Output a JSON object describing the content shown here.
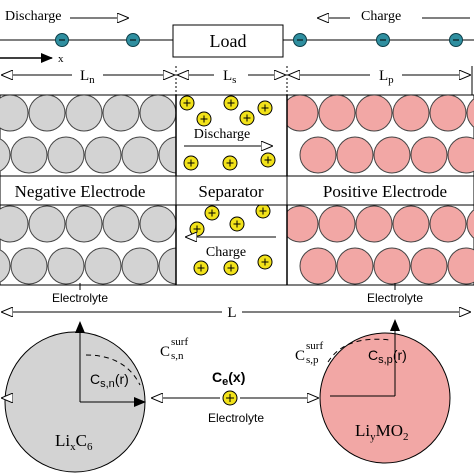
{
  "top": {
    "discharge": "Discharge",
    "charge": "Charge",
    "load": "Load",
    "x_axis": "x"
  },
  "dimensions": {
    "ln": {
      "main": "L",
      "sub": "n"
    },
    "ls": {
      "main": "L",
      "sub": "s"
    },
    "lp": {
      "main": "L",
      "sub": "p"
    },
    "total": "L"
  },
  "cell": {
    "negative": "Negative Electrode",
    "separator": "Separator",
    "positive": "Positive Electrode",
    "sep_discharge": "Discharge",
    "sep_charge": "Charge",
    "electrolyte_left": "Electrolyte",
    "electrolyte_right": "Electrolyte"
  },
  "particles": {
    "csn_surf": {
      "main": "C",
      "sub": "s,n",
      "sup": "surf"
    },
    "csp_surf": {
      "main": "C",
      "sub": "s,p",
      "sup": "surf"
    },
    "csn_r": {
      "main": "C",
      "sub": "s,n",
      "tail": "(r)"
    },
    "csp_r": {
      "main": "C",
      "sub": "s,p",
      "tail": "(r)"
    },
    "ce": {
      "main": "C",
      "sub": "e",
      "tail": "(x)"
    },
    "electrolyte": "Electrolyte",
    "anode": {
      "a": "Li",
      "b": "x",
      "c": "C",
      "d": "6"
    },
    "cathode": {
      "a": "Li",
      "b": "y",
      "c": "MO",
      "d": "2"
    }
  }
}
